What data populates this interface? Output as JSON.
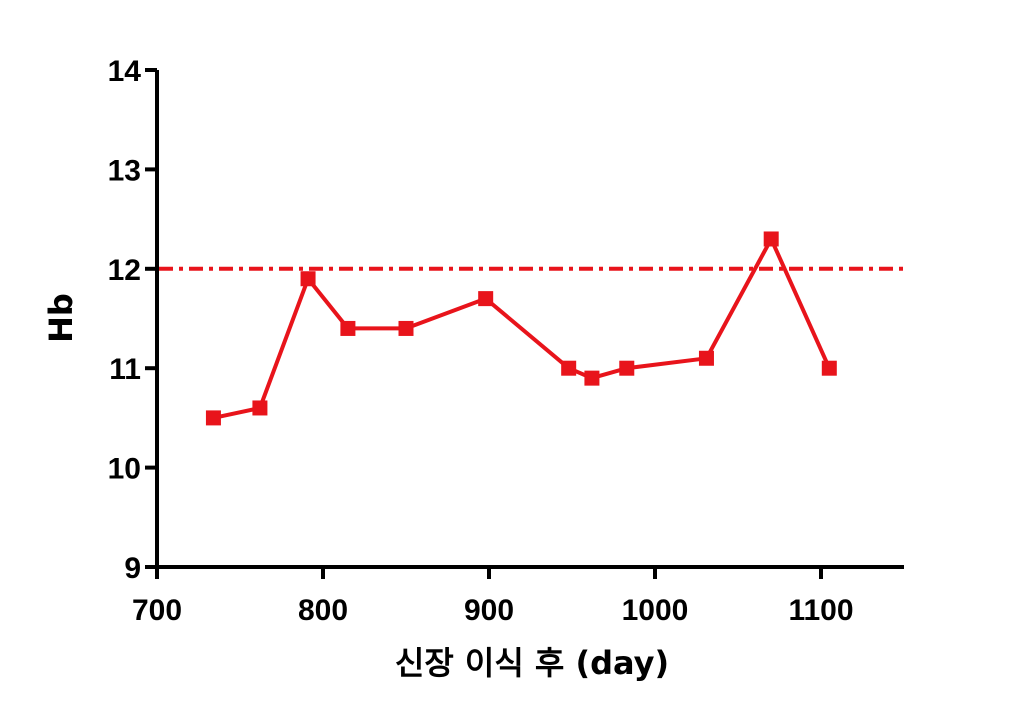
{
  "chart_data": {
    "type": "line",
    "xlabel": "신장 이식 후 (day)",
    "ylabel": "Hb",
    "xlim": [
      700,
      1150
    ],
    "ylim": [
      9,
      14
    ],
    "x_ticks": [
      700,
      800,
      900,
      1000,
      1100
    ],
    "y_ticks": [
      9,
      10,
      11,
      12,
      13,
      14
    ],
    "grid": false,
    "reference_line": {
      "y": 12,
      "style": "dash-dot",
      "color": "#e8141b"
    },
    "series": [
      {
        "color": "#e8141b",
        "marker": "square",
        "x": [
          734,
          762,
          791,
          815,
          850,
          898,
          948,
          962,
          983,
          1031,
          1070,
          1105
        ],
        "y": [
          10.5,
          10.6,
          11.9,
          11.4,
          11.4,
          11.7,
          11.0,
          10.9,
          11.0,
          11.1,
          12.3,
          11.0
        ]
      }
    ]
  }
}
